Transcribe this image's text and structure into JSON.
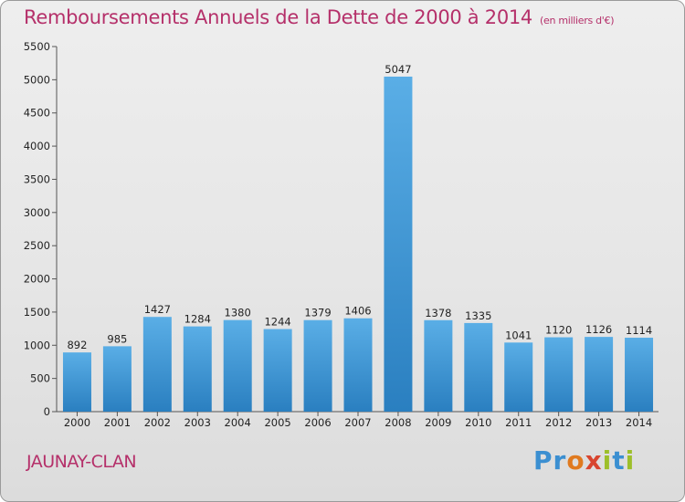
{
  "title": "Remboursements Annuels de la Dette de 2000 à 2014",
  "subtitle": "(en milliers d'€)",
  "commune": "JAUNAY-CLAN",
  "logo": "Proxiti",
  "colors": {
    "bar_top": "#5aaee6",
    "bar_bottom": "#2a7fc0",
    "title": "#b5306a"
  },
  "chart_data": {
    "type": "bar",
    "categories": [
      "2000",
      "2001",
      "2002",
      "2003",
      "2004",
      "2005",
      "2006",
      "2007",
      "2008",
      "2009",
      "2010",
      "2011",
      "2012",
      "2013",
      "2014"
    ],
    "values": [
      892,
      985,
      1427,
      1284,
      1380,
      1244,
      1379,
      1406,
      5047,
      1378,
      1335,
      1041,
      1120,
      1126,
      1114
    ],
    "ylim": [
      0,
      5500
    ],
    "yticks": [
      0,
      500,
      1000,
      1500,
      2000,
      2500,
      3000,
      3500,
      4000,
      4500,
      5000,
      5500
    ],
    "grid": false,
    "data_labels": true
  }
}
